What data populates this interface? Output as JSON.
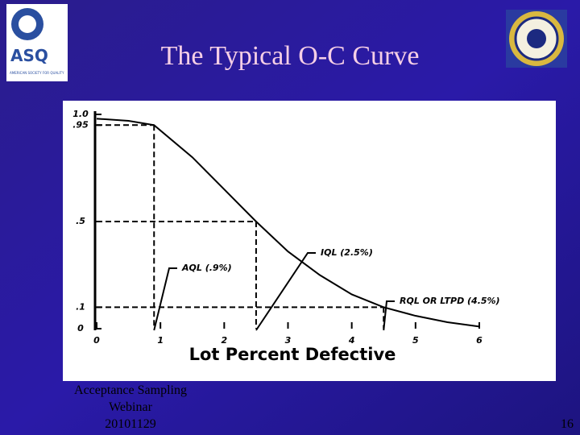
{
  "slide": {
    "title": "The Typical O-C Curve",
    "logo_text": "ASQ",
    "logo_subtext": "AMERICAN SOCIETY FOR QUALITY",
    "footer_lines": [
      "Acceptance Sampling",
      "Webinar",
      "20101129"
    ],
    "page_number": "16"
  },
  "chart_data": {
    "type": "line",
    "x_label": "Lot Percent Defective",
    "color": "#000000",
    "x": [
      0,
      0.5,
      0.9,
      1.5,
      2,
      2.5,
      3,
      3.5,
      4,
      4.5,
      5,
      5.5,
      6
    ],
    "values": [
      0.98,
      0.97,
      0.95,
      0.8,
      0.65,
      0.5,
      0.36,
      0.25,
      0.16,
      0.1,
      0.06,
      0.03,
      0.01
    ],
    "xlim": [
      0,
      6
    ],
    "xticks": [
      0,
      1,
      2,
      3,
      4,
      5,
      6
    ],
    "ylim": [
      0,
      1
    ],
    "yticks": [
      0,
      {
        "value": 0.1,
        "label": ".1"
      },
      {
        "value": 0.5,
        "label": ".5"
      },
      {
        "value": 0.95,
        "label": ".95"
      },
      {
        "value": 1,
        "label": "1.0"
      }
    ],
    "annotations": [
      {
        "text": "AQL (.9%)",
        "x": 0.9,
        "y": 0.95
      },
      {
        "text": "IQL (2.5%)",
        "x": 2.5,
        "y": 0.5
      },
      {
        "text": "RQL OR LTPD (4.5%)",
        "x": 4.5,
        "y": 0.1
      }
    ]
  }
}
